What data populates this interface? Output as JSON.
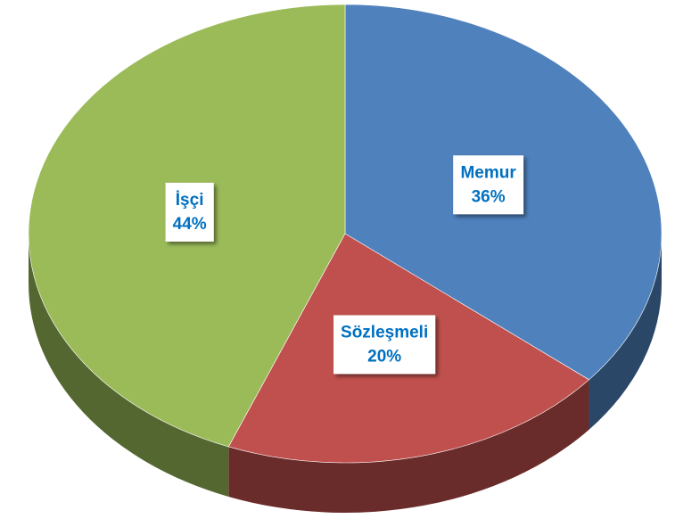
{
  "chart_data": {
    "type": "pie",
    "categories": [
      "Memur",
      "Sözleşmeli",
      "İşçi"
    ],
    "values": [
      36,
      20,
      44
    ],
    "value_labels": [
      "36%",
      "20%",
      "44%"
    ],
    "colors": [
      "#4f81bd",
      "#c0504d",
      "#9bbb59"
    ]
  }
}
